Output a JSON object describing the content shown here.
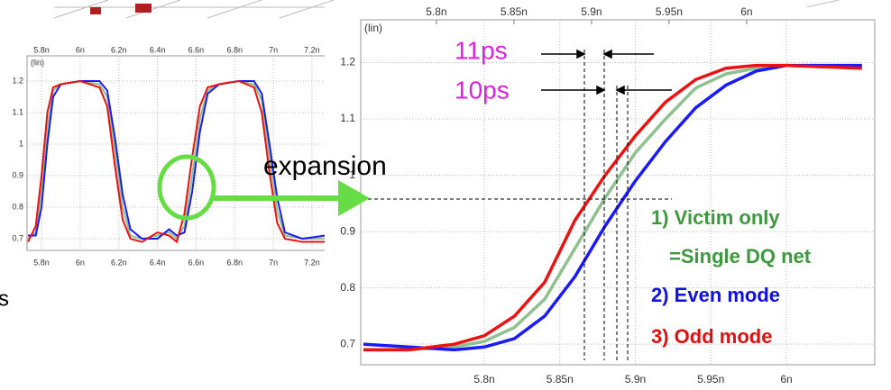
{
  "chart_data": [
    {
      "type": "line",
      "y_axis_label": "(lin)",
      "x": [
        5.73,
        5.77,
        5.8,
        5.83,
        5.86,
        5.9,
        6.0,
        6.1,
        6.14,
        6.18,
        6.22,
        6.26,
        6.32,
        6.4,
        6.46,
        6.5,
        6.54,
        6.58,
        6.62,
        6.66,
        6.72,
        6.82,
        6.9,
        6.94,
        6.98,
        7.02,
        7.06,
        7.15,
        7.27
      ],
      "series": [
        {
          "color": "#8fc08f",
          "values": [
            0.7,
            0.72,
            0.85,
            1.05,
            1.17,
            1.19,
            1.2,
            1.19,
            1.15,
            0.98,
            0.8,
            0.71,
            0.7,
            0.71,
            0.72,
            0.7,
            0.74,
            0.9,
            1.08,
            1.17,
            1.19,
            1.2,
            1.19,
            1.14,
            0.96,
            0.79,
            0.71,
            0.7,
            0.7
          ]
        },
        {
          "color": "#1a1aff",
          "values": [
            0.71,
            0.71,
            0.8,
            1.0,
            1.15,
            1.19,
            1.2,
            1.2,
            1.17,
            1.02,
            0.84,
            0.73,
            0.7,
            0.7,
            0.73,
            0.71,
            0.72,
            0.85,
            1.04,
            1.16,
            1.19,
            1.2,
            1.2,
            1.16,
            1.0,
            0.83,
            0.72,
            0.7,
            0.71
          ]
        },
        {
          "color": "#ee1111",
          "values": [
            0.69,
            0.74,
            0.9,
            1.1,
            1.18,
            1.19,
            1.2,
            1.18,
            1.12,
            0.93,
            0.76,
            0.7,
            0.69,
            0.72,
            0.71,
            0.69,
            0.78,
            0.96,
            1.12,
            1.18,
            1.19,
            1.2,
            1.18,
            1.1,
            0.91,
            0.75,
            0.7,
            0.69,
            0.69
          ]
        }
      ],
      "xlim": [
        5.725,
        7.275
      ],
      "xticks": [
        {
          "value": 5.8,
          "label": "5.8n"
        },
        {
          "value": 6,
          "label": "6n"
        },
        {
          "value": 6.2,
          "label": "6.2n"
        },
        {
          "value": 6.4,
          "label": "6.4n"
        },
        {
          "value": 6.6,
          "label": "6.6n"
        },
        {
          "value": 6.8,
          "label": "6.8n"
        },
        {
          "value": 7,
          "label": "7n"
        },
        {
          "value": 7.2,
          "label": "7.2n"
        }
      ],
      "ylim": [
        0.663,
        1.28
      ],
      "yticks": [
        0.7,
        0.8,
        0.9,
        1,
        1.1,
        1.2
      ],
      "grid": true
    },
    {
      "type": "line",
      "y_axis_label": "(lin)",
      "x": [
        5.72,
        5.75,
        5.78,
        5.8,
        5.82,
        5.84,
        5.86,
        5.88,
        5.9,
        5.92,
        5.94,
        5.96,
        5.98,
        6.0,
        6.05
      ],
      "series": [
        {
          "name": "1) Victim only",
          "legend_note": "=Single DQ net",
          "color": "#8fc08f",
          "legend_color": "#3c9a3c",
          "values": [
            0.69,
            0.69,
            0.695,
            0.705,
            0.73,
            0.78,
            0.87,
            0.96,
            1.04,
            1.1,
            1.155,
            1.18,
            1.19,
            1.195,
            1.19
          ]
        },
        {
          "name": "2) Even mode",
          "color": "#1a1aff",
          "legend_color": "#1010e0",
          "values": [
            0.7,
            0.695,
            0.69,
            0.695,
            0.71,
            0.75,
            0.82,
            0.91,
            0.99,
            1.06,
            1.12,
            1.16,
            1.185,
            1.195,
            1.195
          ]
        },
        {
          "name": "3) Odd mode",
          "color": "#ee1111",
          "legend_color": "#e01010",
          "values": [
            0.69,
            0.69,
            0.7,
            0.715,
            0.75,
            0.81,
            0.92,
            1.0,
            1.07,
            1.13,
            1.17,
            1.19,
            1.195,
            1.195,
            1.19
          ]
        }
      ],
      "xlim": [
        5.7182,
        6.0585
      ],
      "xticks": [
        {
          "value": 5.8,
          "label": "5.8n"
        },
        {
          "value": 5.85,
          "label": "5.85n"
        },
        {
          "value": 5.9,
          "label": "5.9n"
        },
        {
          "value": 5.95,
          "label": "5.95n"
        },
        {
          "value": 6,
          "label": "6n"
        }
      ],
      "x2lim": [
        5.7512,
        6.0826
      ],
      "x2ticks": [
        {
          "value": 5.8,
          "label": "5.8n"
        },
        {
          "value": 5.85,
          "label": "5.85n"
        },
        {
          "value": 5.9,
          "label": "5.9n"
        },
        {
          "value": 5.95,
          "label": "5.95n"
        },
        {
          "value": 6,
          "label": "6n"
        }
      ],
      "ylim": [
        0.6635,
        1.276
      ],
      "yticks": [
        0.7,
        0.8,
        0.9,
        1,
        1.1,
        1.2
      ],
      "grid": true
    }
  ],
  "annotations": {
    "delay_odd": "11ps",
    "delay_even": "10ps",
    "expansion": "expansion",
    "cut_text": "s"
  }
}
